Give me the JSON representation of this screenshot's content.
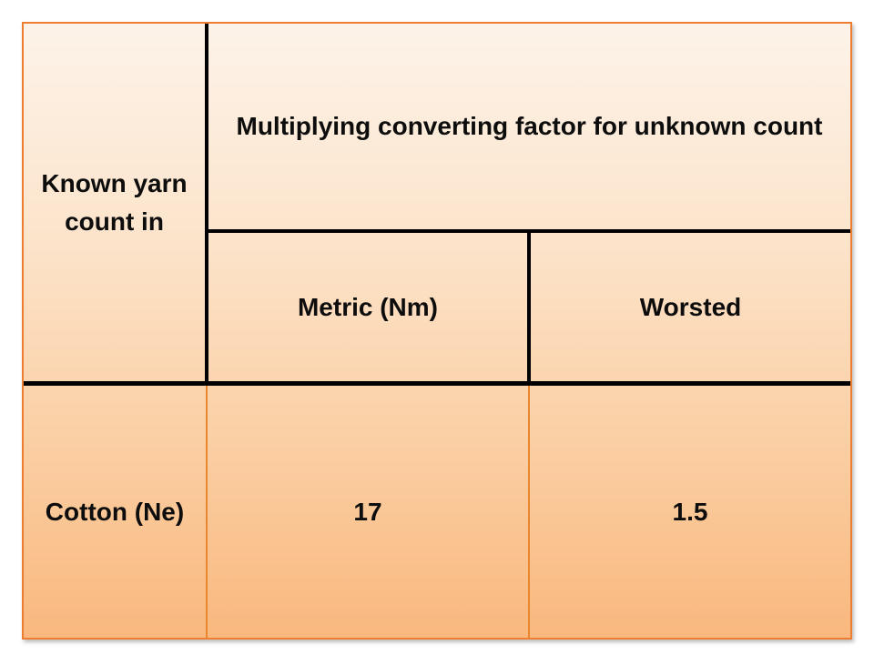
{
  "table": {
    "known_yarn_header": "Known yarn count in",
    "factor_header": "Multiplying converting factor for unknown count",
    "columns": [
      "Metric (Nm)",
      "Worsted"
    ],
    "rows": [
      {
        "known_count": "Cotton (Ne)",
        "metric_value": "17",
        "worsted_value": "1.5"
      }
    ],
    "colors": {
      "outer_border": "#ED7D31",
      "grid_line": "#000000",
      "thin_divider": "#E8872F",
      "gradient_top": "#FDF3E9",
      "gradient_bottom": "#F9B87E",
      "text": "#0D0D0D"
    }
  }
}
